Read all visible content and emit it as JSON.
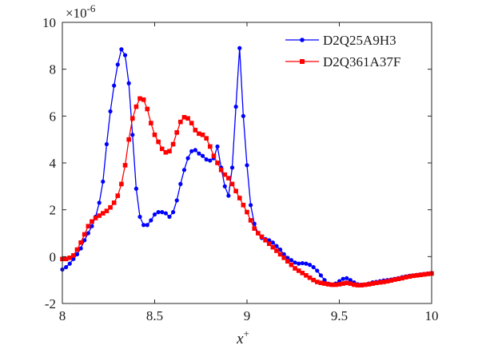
{
  "chart_data": {
    "type": "line",
    "title": "",
    "xlabel_base": "x",
    "xlabel_sup": "+",
    "ylabel": "",
    "y_exponent_base": "×10",
    "y_exponent_power": "-6",
    "xlim": [
      8,
      10
    ],
    "ylim": [
      -2,
      10
    ],
    "x_ticks": [
      8,
      8.5,
      9,
      9.5,
      10
    ],
    "x_tick_labels": [
      "8",
      "8.5",
      "9",
      "9.5",
      "10"
    ],
    "y_ticks": [
      -2,
      0,
      2,
      4,
      6,
      8,
      10
    ],
    "y_tick_labels": [
      "-2",
      "0",
      "2",
      "4",
      "6",
      "8",
      "10"
    ],
    "grid": false,
    "legend_position": "top-right",
    "series": [
      {
        "name": "D2Q25A9H3",
        "color": "#0000ff",
        "marker": "circle",
        "x": [
          8.0,
          8.02,
          8.04,
          8.06,
          8.08,
          8.1,
          8.12,
          8.14,
          8.16,
          8.18,
          8.2,
          8.22,
          8.24,
          8.26,
          8.28,
          8.3,
          8.32,
          8.34,
          8.36,
          8.38,
          8.4,
          8.42,
          8.44,
          8.46,
          8.48,
          8.5,
          8.52,
          8.54,
          8.56,
          8.58,
          8.6,
          8.62,
          8.64,
          8.66,
          8.68,
          8.7,
          8.72,
          8.74,
          8.76,
          8.78,
          8.8,
          8.82,
          8.84,
          8.86,
          8.88,
          8.9,
          8.92,
          8.94,
          8.96,
          8.98,
          9.0,
          9.02,
          9.04,
          9.06,
          9.08,
          9.1,
          9.12,
          9.14,
          9.16,
          9.18,
          9.2,
          9.22,
          9.24,
          9.26,
          9.28,
          9.3,
          9.32,
          9.34,
          9.36,
          9.38,
          9.4,
          9.42,
          9.44,
          9.46,
          9.48,
          9.5,
          9.52,
          9.54,
          9.56,
          9.58,
          9.6,
          9.62,
          9.64,
          9.66,
          9.68,
          9.7,
          9.72,
          9.74,
          9.76,
          9.78,
          9.8,
          9.82,
          9.84,
          9.86,
          9.88,
          9.9,
          9.92,
          9.94,
          9.96,
          9.98,
          10.0
        ],
        "y": [
          -0.55,
          -0.45,
          -0.3,
          -0.1,
          0.1,
          0.35,
          0.7,
          1.0,
          1.3,
          1.7,
          2.3,
          3.2,
          4.8,
          6.2,
          7.3,
          8.2,
          8.85,
          8.6,
          7.4,
          5.2,
          2.9,
          1.7,
          1.35,
          1.35,
          1.55,
          1.8,
          1.9,
          1.9,
          1.85,
          1.7,
          1.9,
          2.4,
          3.1,
          3.7,
          4.2,
          4.5,
          4.55,
          4.4,
          4.3,
          4.15,
          4.1,
          4.2,
          4.7,
          3.8,
          3.0,
          2.6,
          3.8,
          6.4,
          8.9,
          6.0,
          3.9,
          2.2,
          1.4,
          1.0,
          0.8,
          0.75,
          0.7,
          0.6,
          0.45,
          0.3,
          0.1,
          -0.05,
          -0.15,
          -0.25,
          -0.3,
          -0.28,
          -0.3,
          -0.35,
          -0.45,
          -0.6,
          -0.8,
          -1.0,
          -1.15,
          -1.2,
          -1.15,
          -1.05,
          -0.95,
          -0.92,
          -1.0,
          -1.1,
          -1.18,
          -1.2,
          -1.2,
          -1.15,
          -1.1,
          -1.08,
          -1.05,
          -1.02,
          -1.0,
          -0.98,
          -0.95,
          -0.92,
          -0.88,
          -0.85,
          -0.82,
          -0.8,
          -0.78,
          -0.76,
          -0.74,
          -0.72,
          -0.7
        ]
      },
      {
        "name": "D2Q361A37F",
        "color": "#ff0000",
        "marker": "square",
        "x": [
          8.0,
          8.02,
          8.04,
          8.06,
          8.08,
          8.1,
          8.12,
          8.14,
          8.16,
          8.18,
          8.2,
          8.22,
          8.24,
          8.26,
          8.28,
          8.3,
          8.32,
          8.34,
          8.36,
          8.38,
          8.4,
          8.42,
          8.44,
          8.46,
          8.48,
          8.5,
          8.52,
          8.54,
          8.56,
          8.58,
          8.6,
          8.62,
          8.64,
          8.66,
          8.68,
          8.7,
          8.72,
          8.74,
          8.76,
          8.78,
          8.8,
          8.82,
          8.84,
          8.86,
          8.88,
          8.9,
          8.92,
          8.94,
          8.96,
          8.98,
          9.0,
          9.02,
          9.04,
          9.06,
          9.08,
          9.1,
          9.12,
          9.14,
          9.16,
          9.18,
          9.2,
          9.22,
          9.24,
          9.26,
          9.28,
          9.3,
          9.32,
          9.34,
          9.36,
          9.38,
          9.4,
          9.42,
          9.44,
          9.46,
          9.48,
          9.5,
          9.52,
          9.54,
          9.56,
          9.58,
          9.6,
          9.62,
          9.64,
          9.66,
          9.68,
          9.7,
          9.72,
          9.74,
          9.76,
          9.78,
          9.8,
          9.82,
          9.84,
          9.86,
          9.88,
          9.9,
          9.92,
          9.94,
          9.96,
          9.98,
          10.0
        ],
        "y": [
          -0.1,
          -0.1,
          -0.05,
          0.05,
          0.3,
          0.6,
          0.95,
          1.3,
          1.5,
          1.65,
          1.75,
          1.85,
          1.95,
          2.1,
          2.3,
          2.6,
          3.1,
          3.9,
          5.0,
          5.9,
          6.4,
          6.75,
          6.7,
          6.3,
          5.7,
          5.2,
          4.9,
          4.6,
          4.45,
          4.5,
          4.8,
          5.3,
          5.75,
          5.95,
          5.9,
          5.7,
          5.4,
          5.25,
          5.2,
          5.05,
          4.7,
          4.3,
          4.0,
          3.7,
          3.5,
          3.35,
          3.1,
          2.8,
          2.5,
          2.2,
          1.9,
          1.55,
          1.2,
          1.0,
          0.85,
          0.7,
          0.55,
          0.4,
          0.25,
          0.1,
          -0.05,
          -0.2,
          -0.35,
          -0.5,
          -0.6,
          -0.7,
          -0.8,
          -0.9,
          -1.0,
          -1.08,
          -1.12,
          -1.15,
          -1.18,
          -1.2,
          -1.2,
          -1.18,
          -1.15,
          -1.12,
          -1.15,
          -1.2,
          -1.22,
          -1.22,
          -1.2,
          -1.18,
          -1.15,
          -1.12,
          -1.1,
          -1.08,
          -1.05,
          -1.02,
          -0.98,
          -0.95,
          -0.92,
          -0.88,
          -0.85,
          -0.82,
          -0.8,
          -0.78,
          -0.76,
          -0.74,
          -0.72
        ]
      }
    ]
  }
}
